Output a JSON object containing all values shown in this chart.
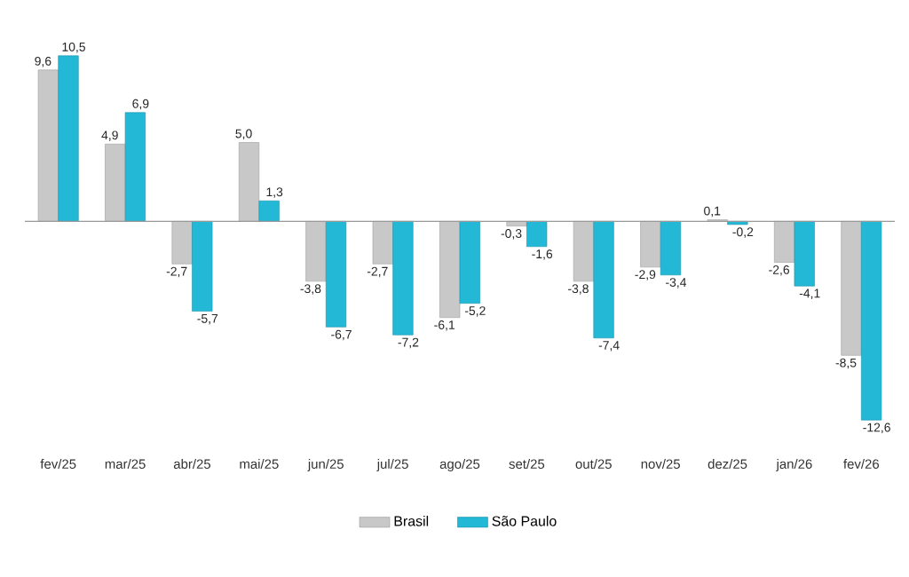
{
  "chart_data": {
    "type": "bar",
    "categories": [
      "fev/25",
      "mar/25",
      "abr/25",
      "mai/25",
      "jun/25",
      "jul/25",
      "ago/25",
      "set/25",
      "out/25",
      "nov/25",
      "dez/25",
      "jan/26",
      "fev/26"
    ],
    "series": [
      {
        "name": "Brasil",
        "color": "#c8c8c8",
        "values": [
          9.6,
          4.9,
          -2.7,
          5.0,
          -3.8,
          -2.7,
          -6.1,
          -0.3,
          -3.8,
          -2.9,
          0.1,
          -2.6,
          -8.5
        ],
        "value_labels": [
          "9,6",
          "4,9",
          "-2,7",
          "5,0",
          "-3,8",
          "-2,7",
          "-6,1",
          "-0,3",
          "-3,8",
          "-2,9",
          "0,1",
          "-2,6",
          "-8,5"
        ]
      },
      {
        "name": "São Paulo",
        "color": "#22b8d6",
        "values": [
          10.5,
          6.9,
          -5.7,
          1.3,
          -6.7,
          -7.2,
          -5.2,
          -1.6,
          -7.4,
          -3.4,
          -0.2,
          -4.1,
          -12.6
        ],
        "value_labels": [
          "10,5",
          "6,9",
          "-5,7",
          "1,3",
          "-6,7",
          "-7,2",
          "-5,2",
          "-1,6",
          "-7,4",
          "-3,4",
          "-0,2",
          "-4,1",
          "-12,6"
        ]
      }
    ],
    "legend": "bottom",
    "grid": false
  }
}
